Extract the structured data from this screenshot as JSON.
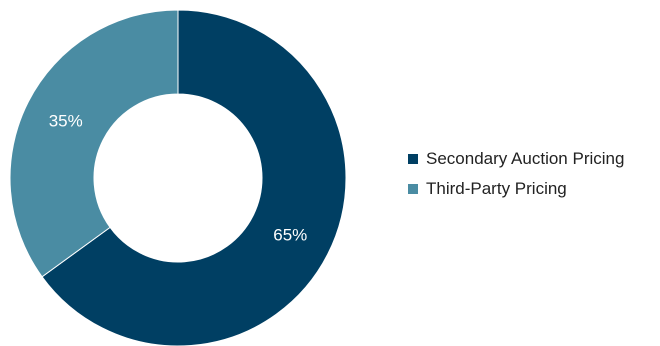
{
  "chart_data": {
    "type": "pie",
    "variant": "donut",
    "categories": [
      "Secondary Auction Pricing",
      "Third-Party Pricing"
    ],
    "values": [
      65,
      35
    ],
    "value_labels": [
      "65%",
      "35%"
    ],
    "colors": [
      "#003f63",
      "#4a8ca3"
    ],
    "legend_position": "right"
  }
}
